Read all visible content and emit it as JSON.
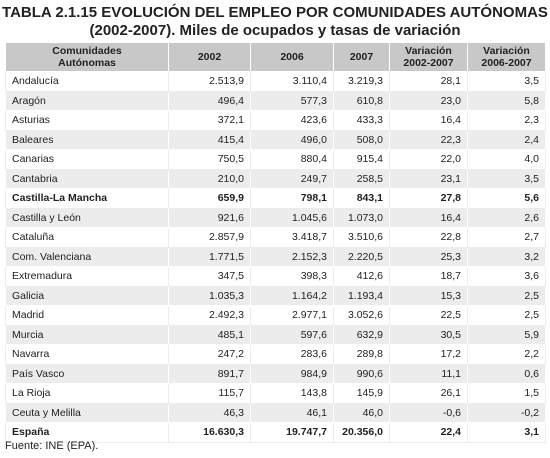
{
  "title": [
    "TABLA 2.1.15 EVOLUCIÓN DEL EMPLEO POR COMUNIDADES AUTÓNOMAS",
    "(2002-2007). Miles de ocupados y tasas de variación"
  ],
  "table": {
    "header": [
      [
        "Comunidades",
        "Autónomas"
      ],
      [
        "2002"
      ],
      [
        "2006"
      ],
      [
        "2007"
      ],
      [
        "Variación",
        "2002-2007"
      ],
      [
        "Variación",
        "2006-2007"
      ]
    ],
    "rows": [
      [
        "Andalucía",
        "2.513,9",
        "3.110,4",
        "3.219,3",
        "28,1",
        "3,5"
      ],
      [
        "Aragón",
        "496,4",
        "577,3",
        "610,8",
        "23,0",
        "5,8"
      ],
      [
        "Asturias",
        "372,1",
        "423,6",
        "433,3",
        "16,4",
        "2,3"
      ],
      [
        "Baleares",
        "415,4",
        "496,0",
        "508,0",
        "22,3",
        "2,4"
      ],
      [
        "Canarias",
        "750,5",
        "880,4",
        "915,4",
        "22,0",
        "4,0"
      ],
      [
        "Cantabria",
        "210,0",
        "249,7",
        "258,5",
        "23,1",
        "3,5"
      ],
      [
        "Castilla-La Mancha",
        "659,9",
        "798,1",
        "843,1",
        "27,8",
        "5,6"
      ],
      [
        "Castilla y León",
        "921,6",
        "1.045,6",
        "1.073,0",
        "16,4",
        "2,6"
      ],
      [
        "Cataluña",
        "2.857,9",
        "3.418,7",
        "3.510,6",
        "22,8",
        "2,7"
      ],
      [
        "Com. Valenciana",
        "1.771,5",
        "2.152,3",
        "2.220,5",
        "25,3",
        "3,2"
      ],
      [
        "Extremadura",
        "347,5",
        "398,3",
        "412,6",
        "18,7",
        "3,6"
      ],
      [
        "Galicia",
        "1.035,3",
        "1.164,2",
        "1.193,4",
        "15,3",
        "2,5"
      ],
      [
        "Madrid",
        "2.492,3",
        "2.977,1",
        "3.052,6",
        "22,5",
        "2,5"
      ],
      [
        "Murcia",
        "485,1",
        "597,6",
        "632,9",
        "30,5",
        "5,9"
      ],
      [
        "Navarra",
        "247,2",
        "283,6",
        "289,8",
        "17,2",
        "2,2"
      ],
      [
        "País Vasco",
        "891,7",
        "984,9",
        "990,6",
        "11,1",
        "0,6"
      ],
      [
        "La Rioja",
        "115,7",
        "143,8",
        "145,9",
        "26,1",
        "1,5"
      ],
      [
        "Ceuta y Melilla",
        "46,3",
        "46,1",
        "46,0",
        "-0,6",
        "-0,2"
      ],
      [
        "España",
        "16.630,3",
        "19.747,7",
        "20.356,0",
        "22,4",
        "3,1"
      ]
    ],
    "bold_rows": [
      6,
      18
    ]
  },
  "source": "Fuente: INE (EPA)."
}
